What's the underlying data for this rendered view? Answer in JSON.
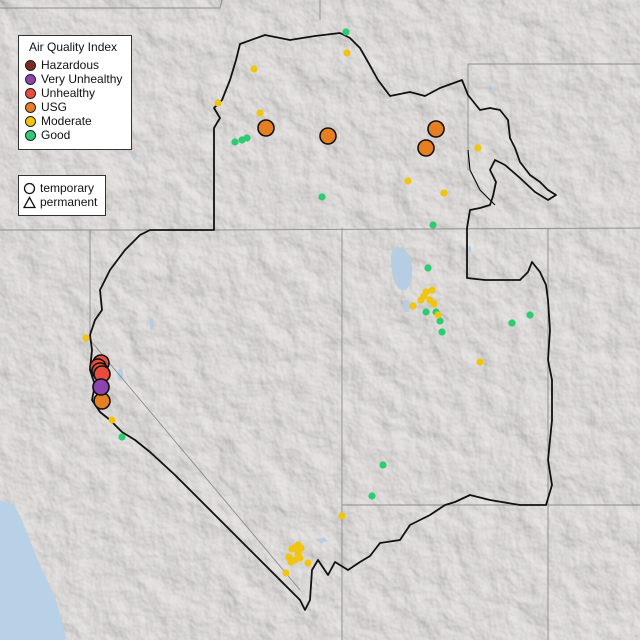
{
  "legend": {
    "title": "Air Quality Index",
    "categories": [
      {
        "label": "Hazardous",
        "color": "#7e2a23"
      },
      {
        "label": "Very Unhealthy",
        "color": "#8e44ad"
      },
      {
        "label": "Unhealthy",
        "color": "#e74c3c"
      },
      {
        "label": "USG",
        "color": "#e67e22"
      },
      {
        "label": "Moderate",
        "color": "#f1c40f"
      },
      {
        "label": "Good",
        "color": "#2ecc71"
      }
    ]
  },
  "monitor_type_legend": {
    "items": [
      {
        "label": "temporary",
        "shape": "circle"
      },
      {
        "label": "permanent",
        "shape": "triangle"
      }
    ]
  },
  "map": {
    "basemap": "shaded-relief terrain, light gray",
    "region_outline": "thick black boundary",
    "marker_counts": {
      "Unhealthy": 4,
      "Very Unhealthy": 1,
      "USG": 5,
      "Moderate": 30,
      "Good": 16
    }
  }
}
